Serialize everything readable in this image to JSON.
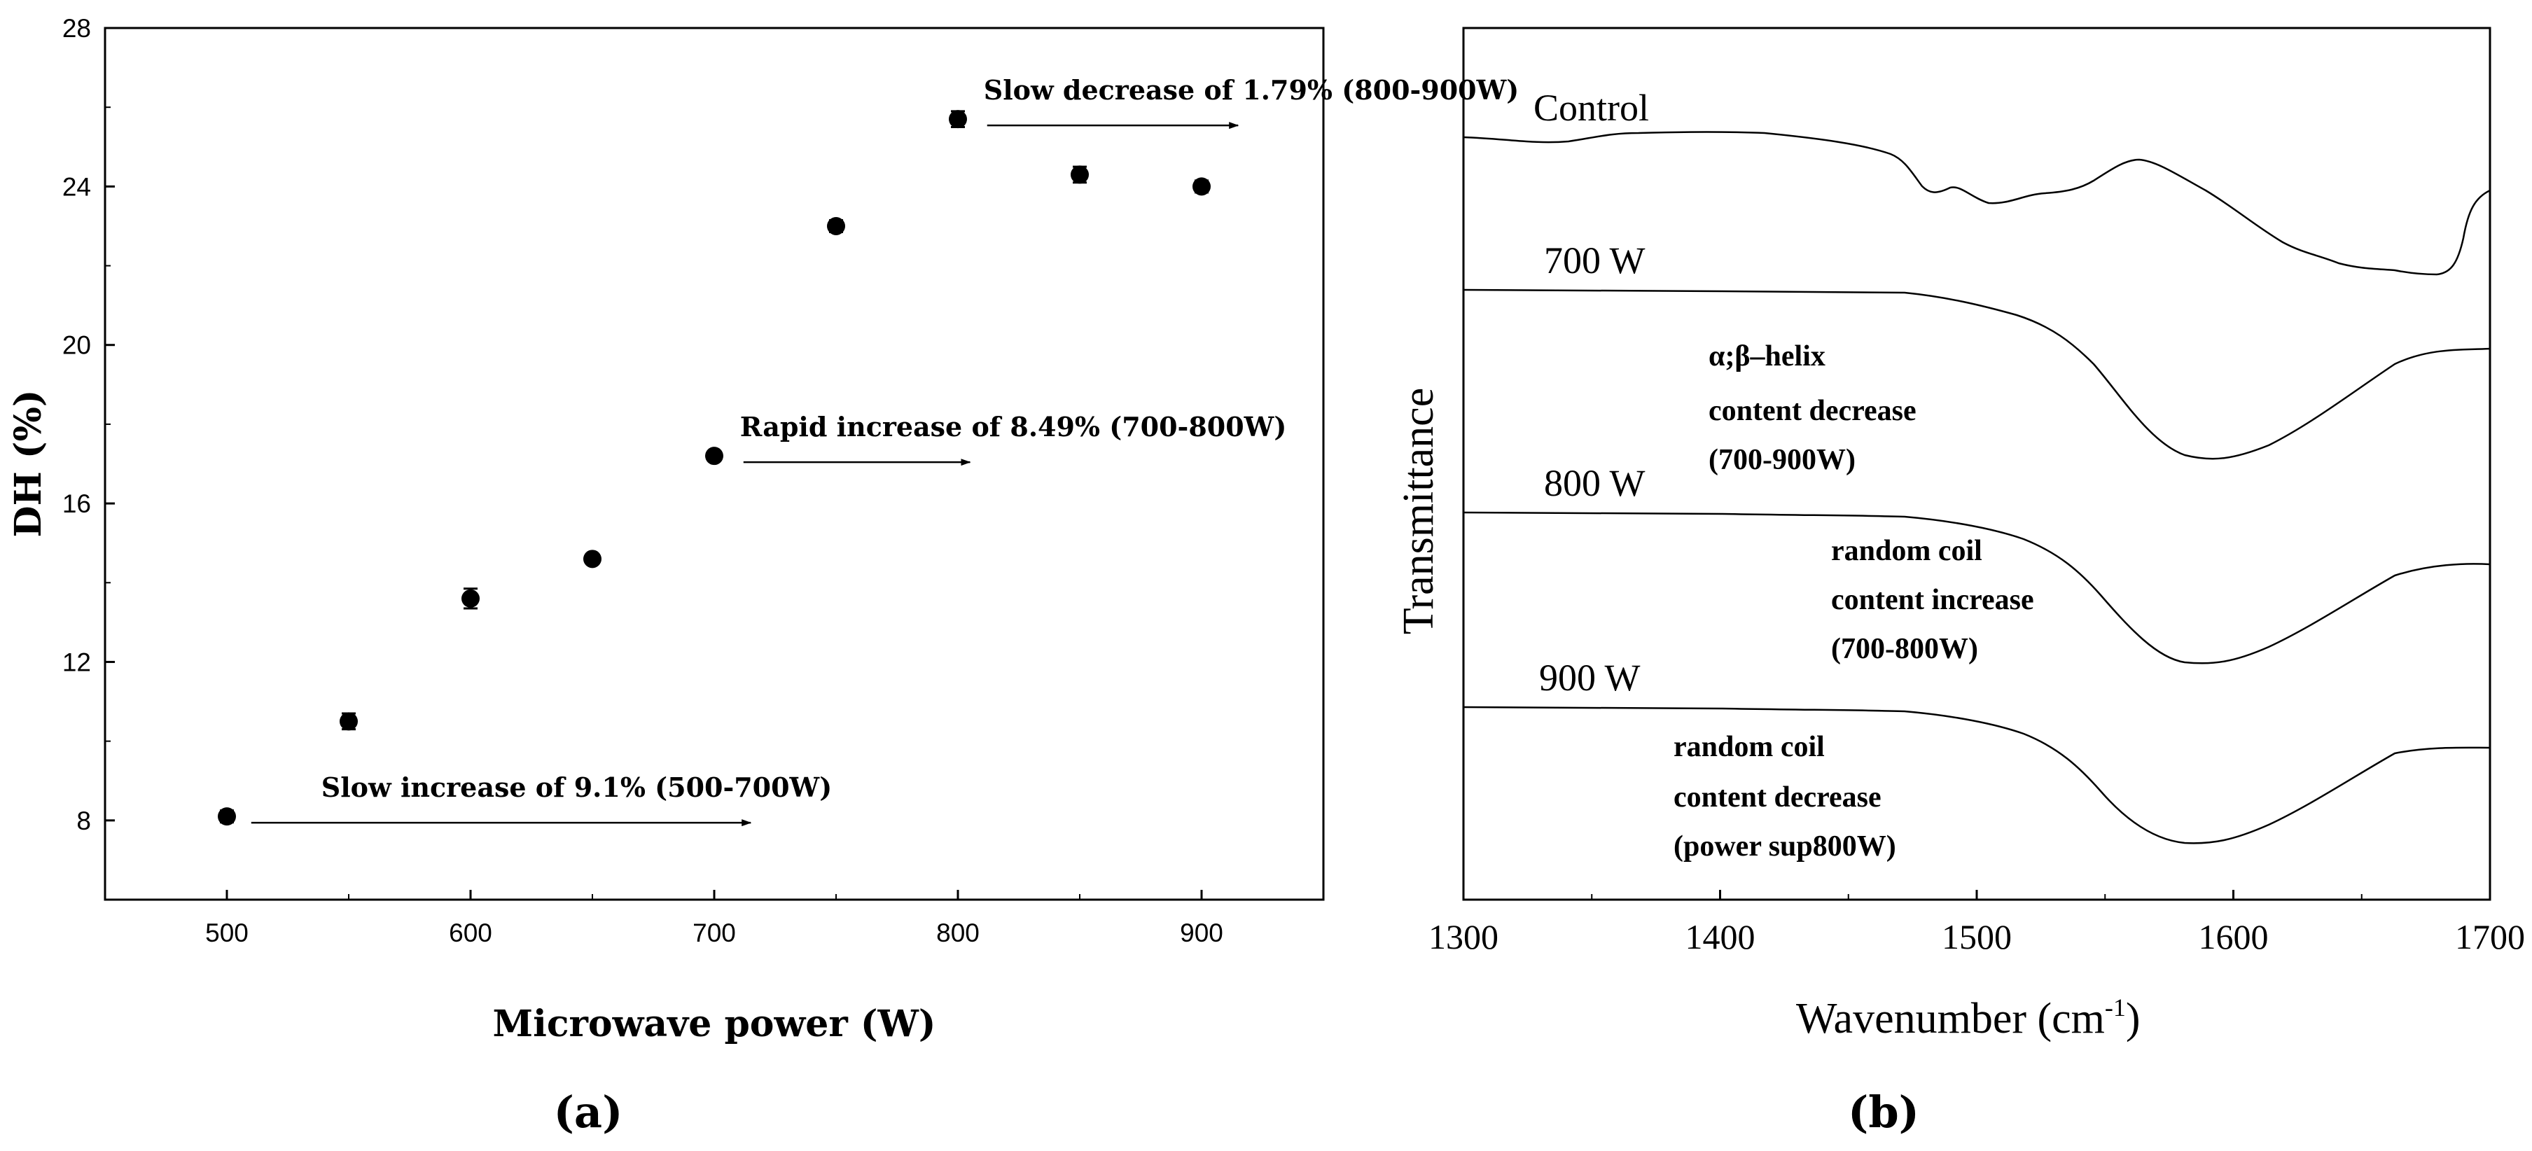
{
  "chart_data": [
    {
      "type": "scatter",
      "panel_label": "(a)",
      "xlabel": "Microwave power (W)",
      "ylabel": "DH (%)",
      "xlim": [
        450,
        950
      ],
      "ylim": [
        6,
        28
      ],
      "x_ticks": [
        500,
        600,
        700,
        800,
        900
      ],
      "y_ticks": [
        8,
        12,
        16,
        20,
        24,
        28
      ],
      "series": [
        {
          "name": "DH",
          "x": [
            500,
            550,
            600,
            650,
            700,
            750,
            800,
            850,
            900
          ],
          "y": [
            8.1,
            10.5,
            13.6,
            14.6,
            17.2,
            23.0,
            25.7,
            24.3,
            24.0
          ],
          "yerr": [
            0.15,
            0.2,
            0.25,
            0.1,
            0.12,
            0.15,
            0.2,
            0.2,
            0.15
          ]
        }
      ],
      "annotations": [
        {
          "text": "Slow increase of 9.1% (500-700W)",
          "x": 510,
          "y": 8.1,
          "arrow_to_x": 715
        },
        {
          "text": "Rapid increase of 8.49% (700-800W)",
          "x": 712,
          "y": 17.2,
          "arrow_to_x": 805
        },
        {
          "text": "Slow decrease of 1.79% (800-900W)",
          "x": 812,
          "y": 25.7,
          "arrow_to_x": 915
        }
      ]
    },
    {
      "type": "line",
      "panel_label": "(b)",
      "xlabel_main": "Wavenumber (cm",
      "xlabel_sup": "-1",
      "xlabel_end": ")",
      "ylabel": "Transmittance",
      "xlim": [
        1300,
        1700
      ],
      "x_ticks": [
        1300,
        1400,
        1500,
        1600,
        1700
      ],
      "series": [
        {
          "name": "Control",
          "label": "Control"
        },
        {
          "name": "700 W",
          "label": "700 W"
        },
        {
          "name": "800 W",
          "label": "800 W"
        },
        {
          "name": "900 W",
          "label": "900 W"
        }
      ],
      "annotations": [
        {
          "lines": [
            "α;β–helix",
            "content decrease",
            "(700-900W)"
          ]
        },
        {
          "lines": [
            "random coil",
            "content increase",
            "(700-800W)"
          ]
        },
        {
          "lines": [
            "random coil",
            "content decrease",
            "(power sup800W)"
          ]
        }
      ]
    }
  ]
}
